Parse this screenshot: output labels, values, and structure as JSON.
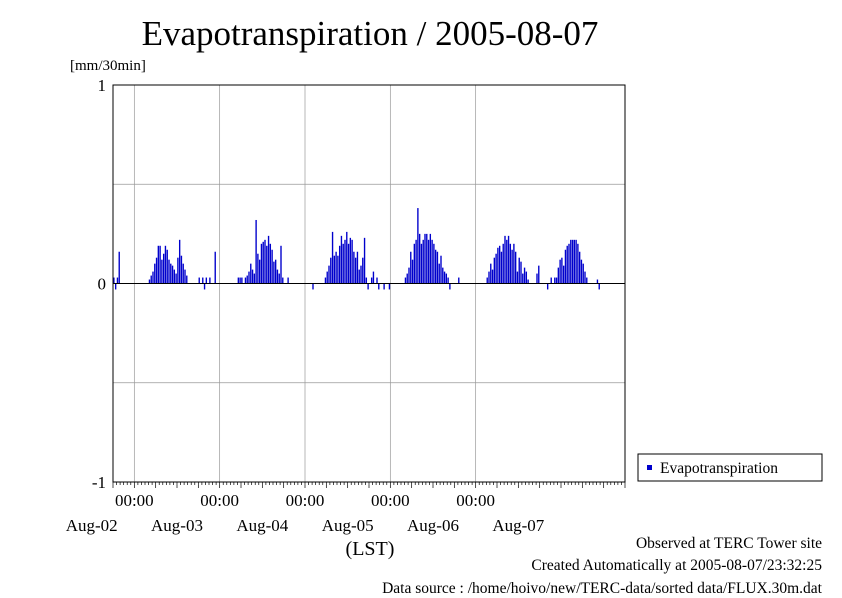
{
  "chart_data": {
    "type": "bar",
    "title": "Evapotranspiration / 2005-08-07",
    "ylabel": "[mm/30min]",
    "xlabel": "(LST)",
    "ylim": [
      -1,
      1
    ],
    "y_ticks": [
      "1",
      "0",
      "-1"
    ],
    "x_tick_times": [
      "00:00",
      "00:00",
      "00:00",
      "00:00",
      "00:00"
    ],
    "x_day_labels": [
      "Aug-02",
      "Aug-03",
      "Aug-04",
      "Aug-05",
      "Aug-06",
      "Aug-07"
    ],
    "grid": true,
    "legend_position": "right",
    "series": [
      {
        "name": "Evapotranspiration",
        "color": "#0000cc",
        "start": "2005-08-01T18:00",
        "step_minutes": 30,
        "values": [
          0.03,
          -0.03,
          0.03,
          0.16,
          0,
          0,
          0,
          0,
          0,
          0,
          0,
          0,
          0,
          0,
          0,
          0,
          0,
          0,
          0,
          0,
          0.02,
          0.04,
          0.06,
          0.1,
          0.13,
          0.19,
          0.19,
          0.12,
          0.15,
          0.19,
          0.17,
          0.12,
          0.1,
          0.09,
          0.07,
          0.05,
          0.13,
          0.22,
          0.14,
          0.1,
          0.07,
          0.04,
          0,
          0,
          0,
          0,
          0,
          0,
          0.03,
          0,
          0.03,
          -0.03,
          0.03,
          0,
          0.03,
          0,
          0,
          0.16,
          0,
          0,
          0,
          0,
          0,
          0,
          0,
          0,
          0,
          0,
          0,
          0,
          0.03,
          0.03,
          0.03,
          0,
          0.03,
          0.04,
          0.06,
          0.1,
          0.07,
          0.05,
          0.32,
          0.15,
          0.12,
          0.2,
          0.21,
          0.22,
          0.19,
          0.24,
          0.2,
          0.17,
          0.11,
          0.12,
          0.07,
          0.05,
          0.19,
          0.03,
          0,
          0,
          0.03,
          0,
          0,
          0,
          0,
          0,
          0,
          0,
          0,
          0,
          0,
          0,
          0,
          0,
          -0.03,
          0,
          0,
          0,
          0,
          0,
          0,
          0.03,
          0.06,
          0.09,
          0.13,
          0.26,
          0.14,
          0.16,
          0.14,
          0.19,
          0.24,
          0.2,
          0.22,
          0.26,
          0.2,
          0.23,
          0.22,
          0.16,
          0.13,
          0.16,
          0.07,
          0.09,
          0.13,
          0.23,
          0.03,
          -0.03,
          0,
          0.03,
          0.06,
          0,
          0.03,
          -0.03,
          0,
          0,
          -0.03,
          0,
          0,
          -0.03,
          0,
          0,
          0,
          0,
          0,
          0,
          0,
          0,
          0.03,
          0.05,
          0.08,
          0.16,
          0.12,
          0.2,
          0.22,
          0.38,
          0.25,
          0.2,
          0.22,
          0.25,
          0.25,
          0.22,
          0.25,
          0.22,
          0.2,
          0.17,
          0.16,
          0.1,
          0.14,
          0.08,
          0.06,
          0.05,
          0.03,
          -0.03,
          0,
          0,
          0,
          0,
          0.03,
          0,
          0,
          0,
          0,
          0,
          0,
          0,
          0,
          0,
          0,
          0,
          0,
          0,
          0,
          0,
          0.03,
          0.06,
          0.1,
          0.07,
          0.13,
          0.15,
          0.18,
          0.19,
          0.16,
          0.2,
          0.24,
          0.22,
          0.24,
          0.2,
          0.17,
          0.2,
          0.16,
          0.06,
          0.13,
          0.11,
          0.05,
          0.08,
          0.06,
          0.02,
          0,
          0,
          0,
          0,
          0.05,
          0.09,
          0,
          0,
          0,
          0,
          -0.03,
          0,
          0.03,
          0,
          0.03,
          0.03,
          0.08,
          0.12,
          0.13,
          0.09,
          0.17,
          0.19,
          0.2,
          0.22,
          0.22,
          0.22,
          0.22,
          0.2,
          0.16,
          0.12,
          0.1,
          0.06,
          0.03,
          0,
          0,
          0,
          0,
          0,
          0.02,
          -0.03
        ]
      }
    ]
  },
  "footer": {
    "site": "Observed at TERC Tower site",
    "created": "Created Automatically at 2005-08-07/23:32:25",
    "source": "Data source : /home/hoivo/new/TERC-data/sorted  data/FLUX.30m.dat"
  }
}
